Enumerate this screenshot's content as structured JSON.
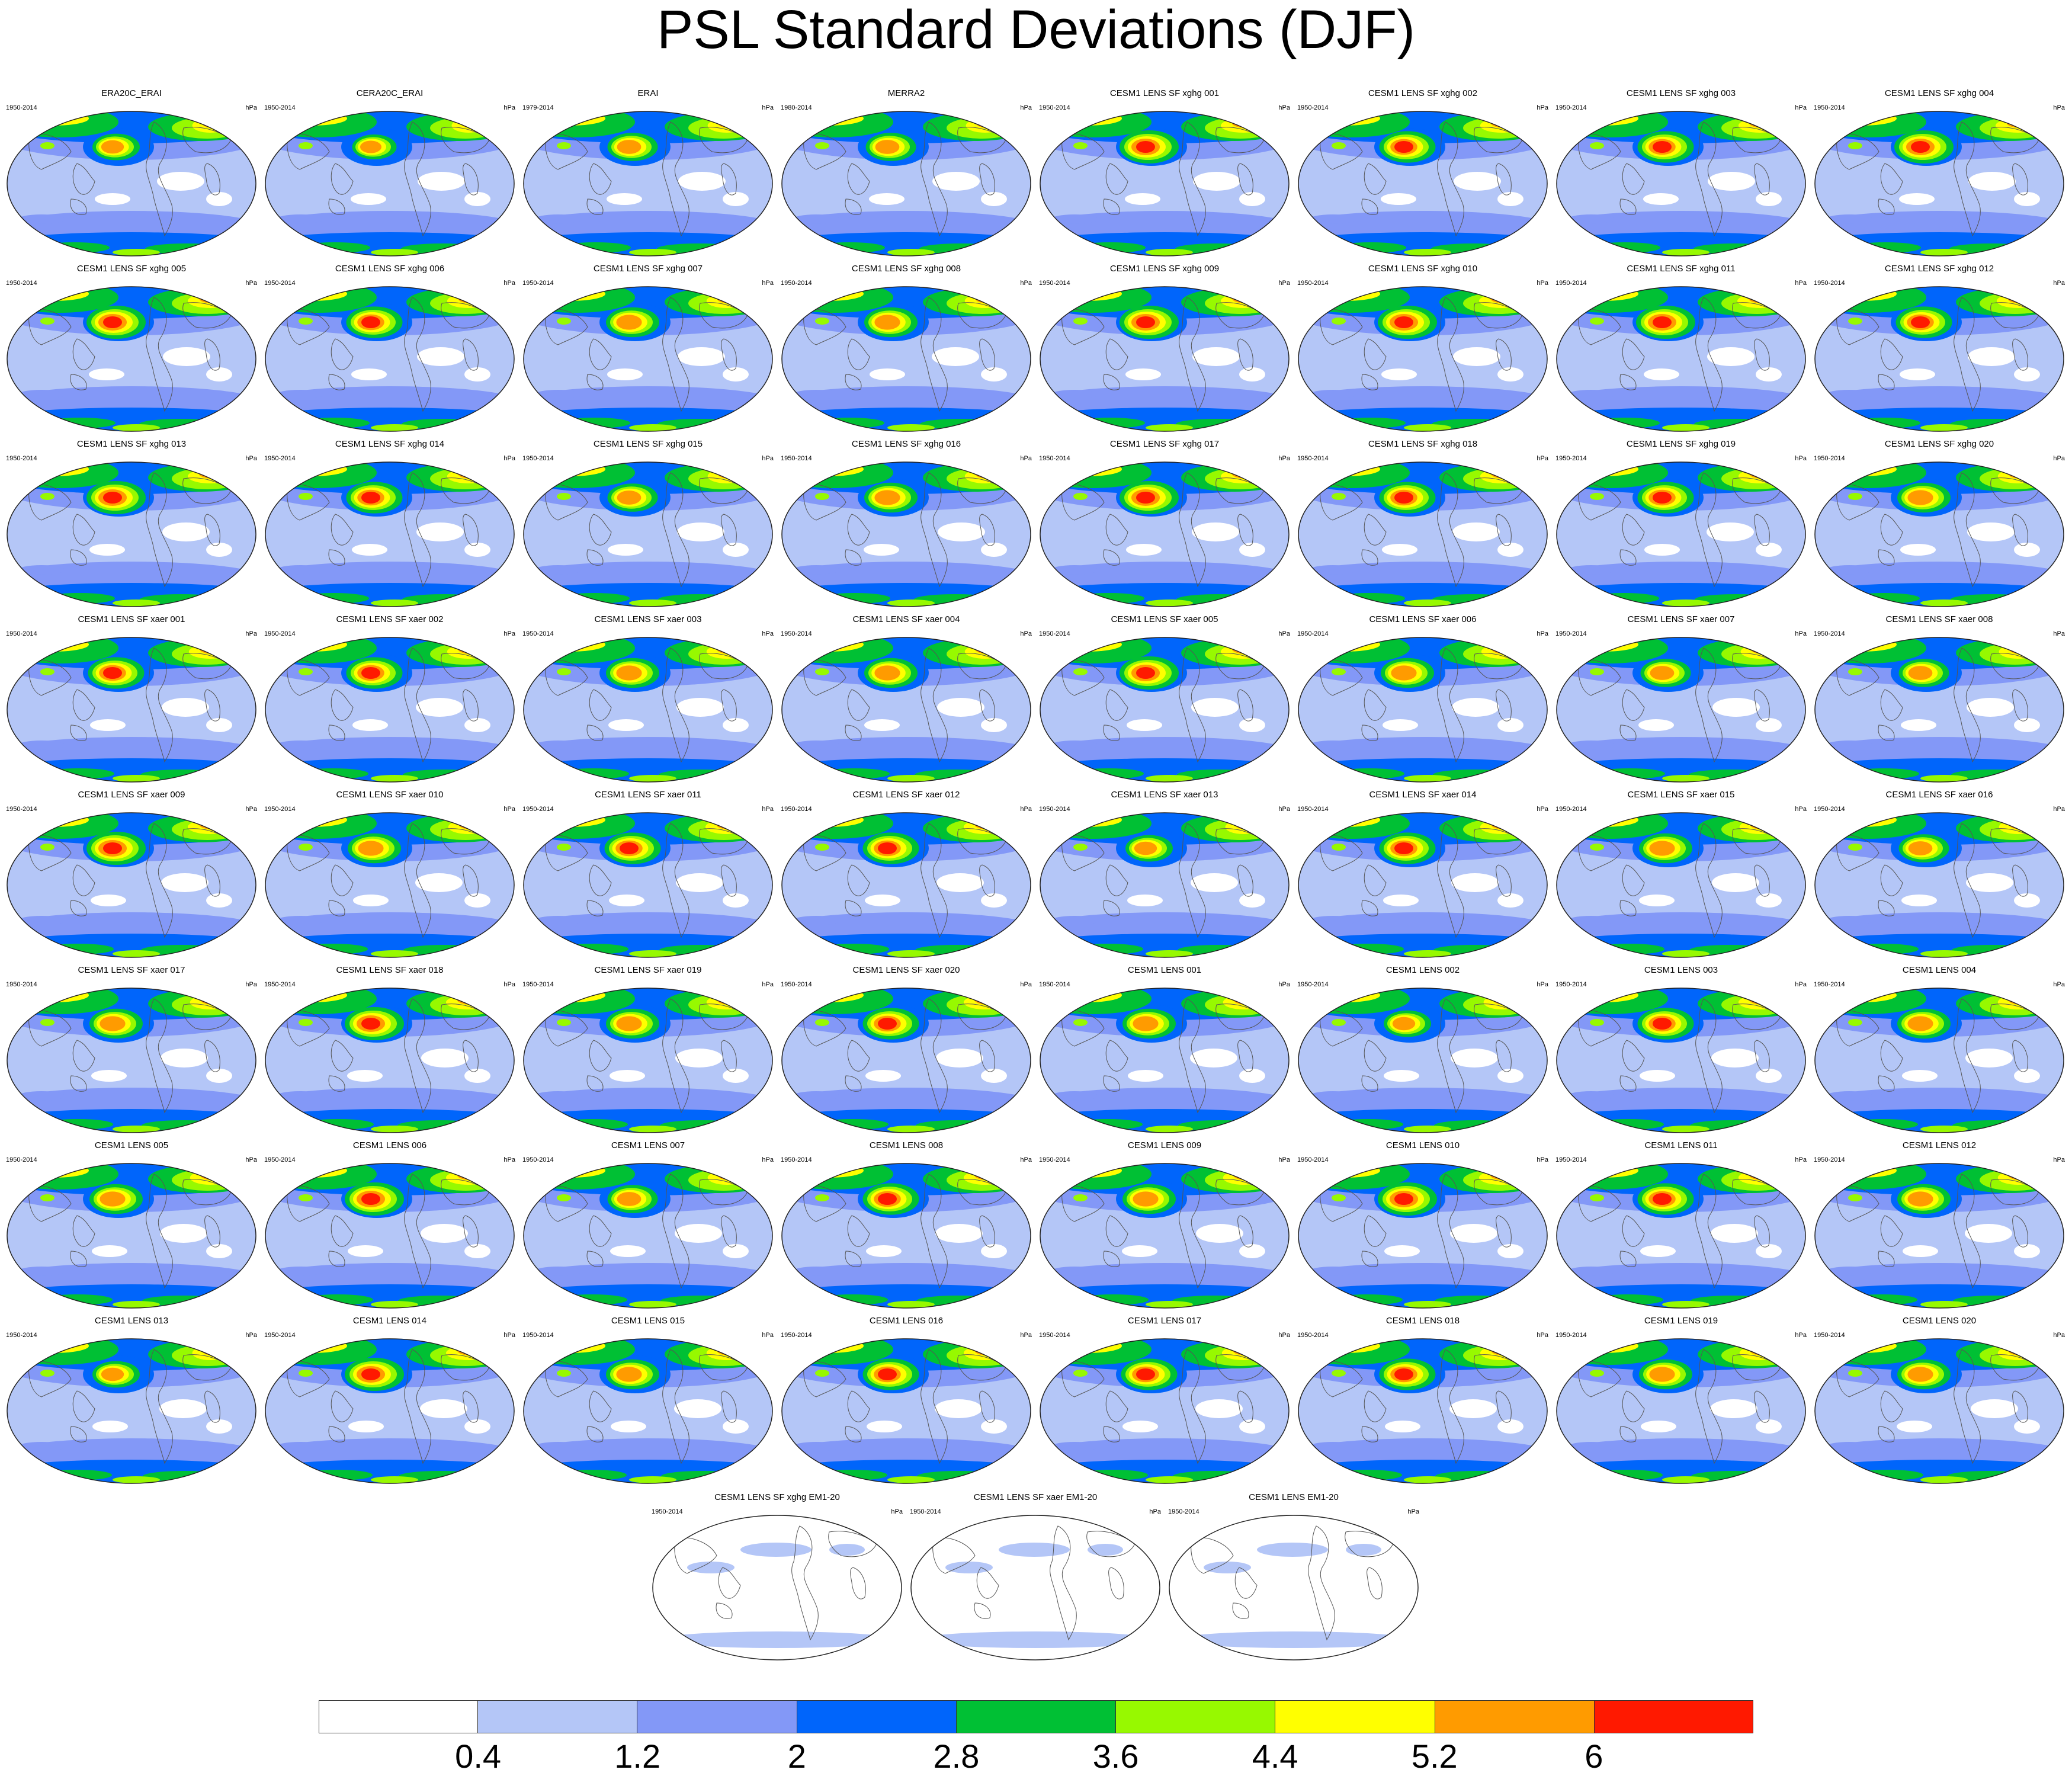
{
  "title": "PSL Standard Deviations (DJF)",
  "units": "hPa",
  "panels": [
    {
      "title": "ERA20C_ERAI",
      "period": "1950-2014",
      "intensity": 0.8
    },
    {
      "title": "CERA20C_ERAI",
      "period": "1950-2014",
      "intensity": 0.75
    },
    {
      "title": "ERAI",
      "period": "1979-2014",
      "intensity": 0.85
    },
    {
      "title": "MERRA2",
      "period": "1980-2014",
      "intensity": 0.85
    },
    {
      "title": "CESM1 LENS SF xghg 001",
      "period": "1950-2014",
      "intensity": 1.0
    },
    {
      "title": "CESM1 LENS SF xghg 002",
      "period": "1950-2014",
      "intensity": 0.95
    },
    {
      "title": "CESM1 LENS SF xghg 003",
      "period": "1950-2014",
      "intensity": 0.95
    },
    {
      "title": "CESM1 LENS SF xghg 004",
      "period": "1950-2014",
      "intensity": 1.0
    },
    {
      "title": "CESM1 LENS SF xghg 005",
      "period": "1950-2014",
      "intensity": 1.0
    },
    {
      "title": "CESM1 LENS SF xghg 006",
      "period": "1950-2014",
      "intensity": 0.95
    },
    {
      "title": "CESM1 LENS SF xghg 007",
      "period": "1950-2014",
      "intensity": 0.9
    },
    {
      "title": "CESM1 LENS SF xghg 008",
      "period": "1950-2014",
      "intensity": 0.9
    },
    {
      "title": "CESM1 LENS SF xghg 009",
      "period": "1950-2014",
      "intensity": 1.0
    },
    {
      "title": "CESM1 LENS SF xghg 010",
      "period": "1950-2014",
      "intensity": 1.0
    },
    {
      "title": "CESM1 LENS SF xghg 011",
      "period": "1950-2014",
      "intensity": 1.0
    },
    {
      "title": "CESM1 LENS SF xghg 012",
      "period": "1950-2014",
      "intensity": 0.95
    },
    {
      "title": "CESM1 LENS SF xghg 013",
      "period": "1950-2014",
      "intensity": 1.0
    },
    {
      "title": "CESM1 LENS SF xghg 014",
      "period": "1950-2014",
      "intensity": 0.95
    },
    {
      "title": "CESM1 LENS SF xghg 015",
      "period": "1950-2014",
      "intensity": 0.85
    },
    {
      "title": "CESM1 LENS SF xghg 016",
      "period": "1950-2014",
      "intensity": 0.9
    },
    {
      "title": "CESM1 LENS SF xghg 017",
      "period": "1950-2014",
      "intensity": 1.0
    },
    {
      "title": "CESM1 LENS SF xghg 018",
      "period": "1950-2014",
      "intensity": 0.95
    },
    {
      "title": "CESM1 LENS SF xghg 019",
      "period": "1950-2014",
      "intensity": 0.95
    },
    {
      "title": "CESM1 LENS SF xghg 020",
      "period": "1950-2014",
      "intensity": 0.9
    },
    {
      "title": "CESM1 LENS SF xaer 001",
      "period": "1950-2014",
      "intensity": 0.95
    },
    {
      "title": "CESM1 LENS SF xaer 002",
      "period": "1950-2014",
      "intensity": 0.95
    },
    {
      "title": "CESM1 LENS SF xaer 003",
      "period": "1950-2014",
      "intensity": 0.9
    },
    {
      "title": "CESM1 LENS SF xaer 004",
      "period": "1950-2014",
      "intensity": 0.9
    },
    {
      "title": "CESM1 LENS SF xaer 005",
      "period": "1950-2014",
      "intensity": 1.0
    },
    {
      "title": "CESM1 LENS SF xaer 006",
      "period": "1950-2014",
      "intensity": 0.9
    },
    {
      "title": "CESM1 LENS SF xaer 007",
      "period": "1950-2014",
      "intensity": 0.85
    },
    {
      "title": "CESM1 LENS SF xaer 008",
      "period": "1950-2014",
      "intensity": 0.85
    },
    {
      "title": "CESM1 LENS SF xaer 009",
      "period": "1950-2014",
      "intensity": 1.0
    },
    {
      "title": "CESM1 LENS SF xaer 010",
      "period": "1950-2014",
      "intensity": 0.9
    },
    {
      "title": "CESM1 LENS SF xaer 011",
      "period": "1950-2014",
      "intensity": 0.95
    },
    {
      "title": "CESM1 LENS SF xaer 012",
      "period": "1950-2014",
      "intensity": 0.95
    },
    {
      "title": "CESM1 LENS SF xaer 013",
      "period": "1950-2014",
      "intensity": 0.8
    },
    {
      "title": "CESM1 LENS SF xaer 014",
      "period": "1950-2014",
      "intensity": 0.95
    },
    {
      "title": "CESM1 LENS SF xaer 015",
      "period": "1950-2014",
      "intensity": 0.9
    },
    {
      "title": "CESM1 LENS SF xaer 016",
      "period": "1950-2014",
      "intensity": 0.85
    },
    {
      "title": "CESM1 LENS SF xaer 017",
      "period": "1950-2014",
      "intensity": 0.9
    },
    {
      "title": "CESM1 LENS SF xaer 018",
      "period": "1950-2014",
      "intensity": 1.0
    },
    {
      "title": "CESM1 LENS SF xaer 019",
      "period": "1950-2014",
      "intensity": 0.9
    },
    {
      "title": "CESM1 LENS SF xaer 020",
      "period": "1950-2014",
      "intensity": 0.95
    },
    {
      "title": "CESM1 LENS 001",
      "period": "1950-2014",
      "intensity": 0.9
    },
    {
      "title": "CESM1 LENS 002",
      "period": "1950-2014",
      "intensity": 0.8
    },
    {
      "title": "CESM1 LENS 003",
      "period": "1950-2014",
      "intensity": 0.95
    },
    {
      "title": "CESM1 LENS 004",
      "period": "1950-2014",
      "intensity": 0.9
    },
    {
      "title": "CESM1 LENS 005",
      "period": "1950-2014",
      "intensity": 0.9
    },
    {
      "title": "CESM1 LENS 006",
      "period": "1950-2014",
      "intensity": 1.0
    },
    {
      "title": "CESM1 LENS 007",
      "period": "1950-2014",
      "intensity": 0.85
    },
    {
      "title": "CESM1 LENS 008",
      "period": "1950-2014",
      "intensity": 0.95
    },
    {
      "title": "CESM1 LENS 009",
      "period": "1950-2014",
      "intensity": 0.9
    },
    {
      "title": "CESM1 LENS 010",
      "period": "1950-2014",
      "intensity": 1.0
    },
    {
      "title": "CESM1 LENS 011",
      "period": "1950-2014",
      "intensity": 0.95
    },
    {
      "title": "CESM1 LENS 012",
      "period": "1950-2014",
      "intensity": 0.9
    },
    {
      "title": "CESM1 LENS 013",
      "period": "1950-2014",
      "intensity": 0.8
    },
    {
      "title": "CESM1 LENS 014",
      "period": "1950-2014",
      "intensity": 1.0
    },
    {
      "title": "CESM1 LENS 015",
      "period": "1950-2014",
      "intensity": 0.9
    },
    {
      "title": "CESM1 LENS 016",
      "period": "1950-2014",
      "intensity": 0.95
    },
    {
      "title": "CESM1 LENS 017",
      "period": "1950-2014",
      "intensity": 0.95
    },
    {
      "title": "CESM1 LENS 018",
      "period": "1950-2014",
      "intensity": 0.95
    },
    {
      "title": "CESM1 LENS 019",
      "period": "1950-2014",
      "intensity": 0.9
    },
    {
      "title": "CESM1 LENS 020",
      "period": "1950-2014",
      "intensity": 0.9
    },
    {
      "title": "CESM1 LENS SF xghg EM1-20",
      "period": "1950-2014",
      "intensity": 0.15
    },
    {
      "title": "CESM1 LENS SF xaer EM1-20",
      "period": "1950-2014",
      "intensity": 0.15
    },
    {
      "title": "CESM1 LENS EM1-20",
      "period": "1950-2014",
      "intensity": 0.15
    }
  ],
  "colorbar": {
    "colors": [
      "#ffffff",
      "#b4c6f7",
      "#8398f7",
      "#0065fb",
      "#00c034",
      "#97f900",
      "#ffff00",
      "#ff9b00",
      "#ff1900"
    ],
    "labels": [
      "0.4",
      "1.2",
      "2",
      "2.8",
      "3.6",
      "4.4",
      "5.2",
      "6"
    ]
  }
}
